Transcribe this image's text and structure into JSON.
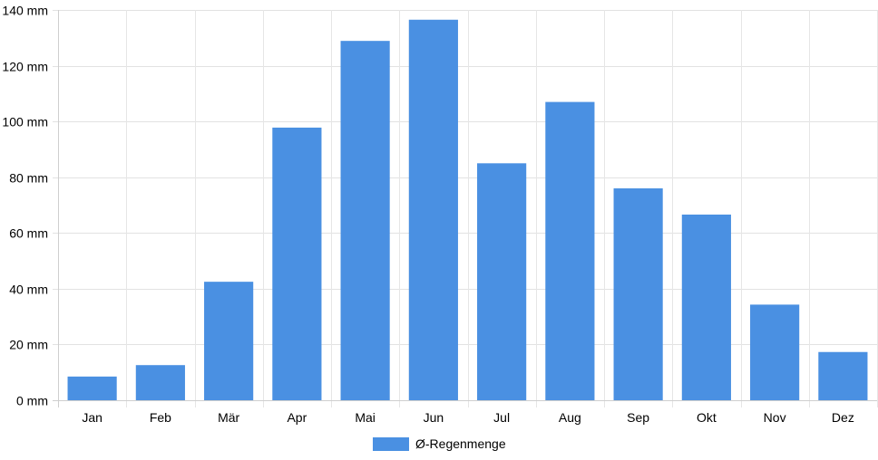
{
  "chart_data": {
    "type": "bar",
    "categories": [
      "Jan",
      "Feb",
      "Mär",
      "Apr",
      "Mai",
      "Jun",
      "Jul",
      "Aug",
      "Sep",
      "Okt",
      "Nov",
      "Dez"
    ],
    "series": [
      {
        "name": "Ø-Regenmenge",
        "color": "#4a90e2",
        "values": [
          8.5,
          12.6,
          42.5,
          97.8,
          128.9,
          136.5,
          85,
          107,
          76,
          66.6,
          34.3,
          17.3
        ]
      }
    ],
    "y_ticks": [
      "0 mm",
      "20 mm",
      "40 mm",
      "60 mm",
      "80 mm",
      "100 mm",
      "120 mm",
      "140 mm"
    ],
    "ylim": [
      0,
      140
    ],
    "y_unit": "mm",
    "grid": true,
    "legend_position": "bottom"
  }
}
